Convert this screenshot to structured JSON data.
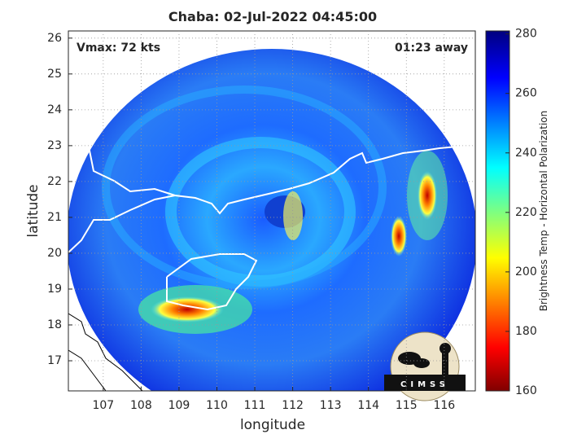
{
  "title": "Chaba: 02-Jul-2022 04:45:00",
  "annotations": {
    "vmax": "Vmax: 72 kts",
    "time_away": "01:23 away"
  },
  "x_axis": {
    "label": "longitude",
    "lim": [
      106.08,
      116.82
    ],
    "ticks": [
      107,
      108,
      109,
      110,
      111,
      112,
      113,
      114,
      115,
      116
    ]
  },
  "y_axis": {
    "label": "latitude",
    "lim": [
      16.16,
      26.2
    ],
    "ticks": [
      17,
      18,
      19,
      20,
      21,
      22,
      23,
      24,
      25,
      26
    ]
  },
  "colorbar": {
    "label": "Brightness Temp - Horizontal Polarization",
    "lim": [
      160,
      281
    ],
    "ticks": [
      160,
      180,
      200,
      220,
      240,
      260,
      280
    ]
  },
  "logo": "CIMSS"
}
